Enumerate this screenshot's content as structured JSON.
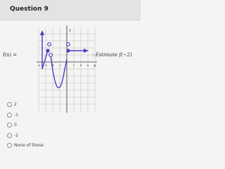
{
  "header": {
    "title": "Question 9"
  },
  "graph": {
    "y_axis": "y",
    "x_axis": "x",
    "x_tick_labels": [
      "-8",
      "-6",
      "-4",
      "-2",
      "2",
      "4",
      "6",
      "8"
    ]
  },
  "prompt": {
    "left": "f(x) =",
    "right": ": Estimate f(−2)"
  },
  "options": [
    "2",
    "-1",
    "0",
    "-2",
    "None of these"
  ]
}
